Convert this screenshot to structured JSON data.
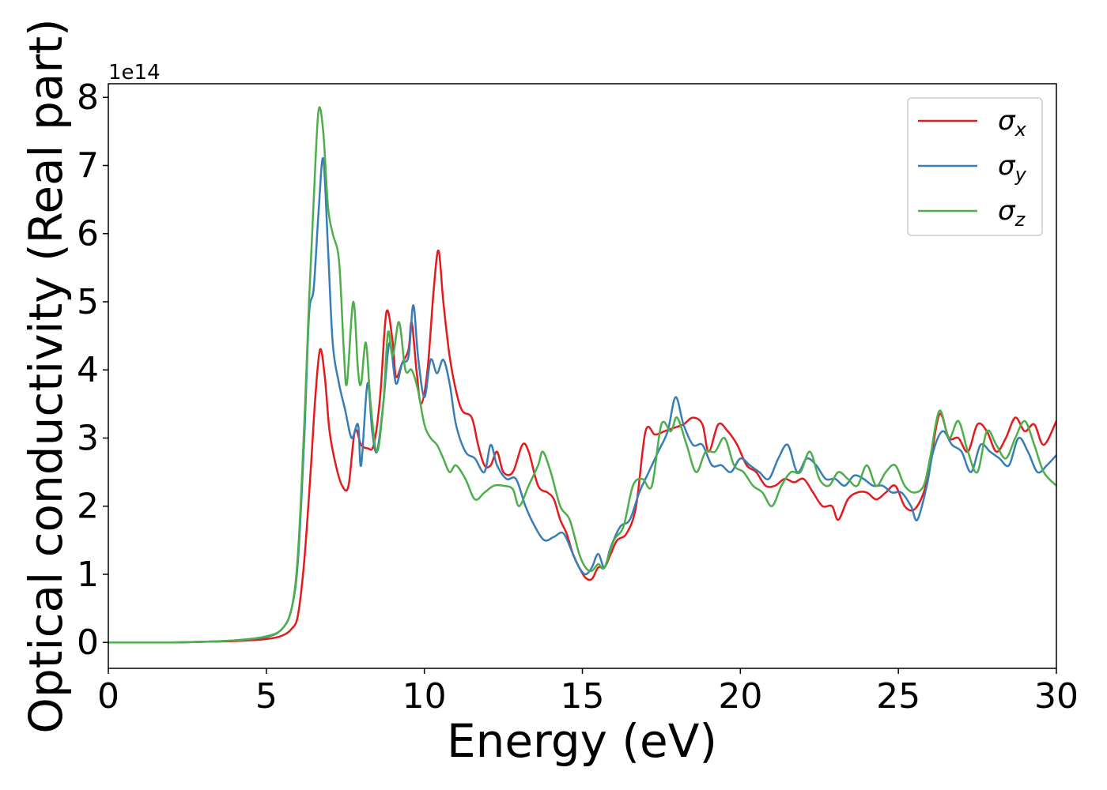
{
  "chart_data": {
    "type": "line",
    "xlabel": "Energy (eV)",
    "ylabel": "Optical conductivity (Real part)",
    "y_offset_label": "1e14",
    "xlim": [
      0,
      30
    ],
    "ylim": [
      -0.38,
      8.2
    ],
    "y_scale_factor": 100000000000000.0,
    "xticks": [
      0,
      5,
      10,
      15,
      20,
      25,
      30
    ],
    "yticks": [
      0,
      1,
      2,
      3,
      4,
      5,
      6,
      7,
      8
    ],
    "grid": false,
    "legend_position": "top-right",
    "series": [
      {
        "name": "σx",
        "symbol": "σ",
        "subscript": "x",
        "color": "#e41a1c",
        "points": [
          [
            0,
            0
          ],
          [
            2,
            0.0
          ],
          [
            3,
            0.01
          ],
          [
            4,
            0.02
          ],
          [
            5,
            0.05
          ],
          [
            5.5,
            0.1
          ],
          [
            5.8,
            0.2
          ],
          [
            6.0,
            0.4
          ],
          [
            6.2,
            1.2
          ],
          [
            6.4,
            2.5
          ],
          [
            6.55,
            3.6
          ],
          [
            6.7,
            4.3
          ],
          [
            6.85,
            3.9
          ],
          [
            7.0,
            3.1
          ],
          [
            7.2,
            2.6
          ],
          [
            7.4,
            2.3
          ],
          [
            7.6,
            2.3
          ],
          [
            7.8,
            3.1
          ],
          [
            8.0,
            2.9
          ],
          [
            8.2,
            2.85
          ],
          [
            8.4,
            2.9
          ],
          [
            8.6,
            3.6
          ],
          [
            8.8,
            4.85
          ],
          [
            9.0,
            4.4
          ],
          [
            9.1,
            3.9
          ],
          [
            9.3,
            4.1
          ],
          [
            9.5,
            4.3
          ],
          [
            9.6,
            4.7
          ],
          [
            9.75,
            4.0
          ],
          [
            9.9,
            3.5
          ],
          [
            10.1,
            4.0
          ],
          [
            10.3,
            5.2
          ],
          [
            10.45,
            5.75
          ],
          [
            10.6,
            5.0
          ],
          [
            10.8,
            4.2
          ],
          [
            11.0,
            3.7
          ],
          [
            11.2,
            3.4
          ],
          [
            11.5,
            3.3
          ],
          [
            11.7,
            2.9
          ],
          [
            11.9,
            2.6
          ],
          [
            12.1,
            2.6
          ],
          [
            12.3,
            2.8
          ],
          [
            12.5,
            2.5
          ],
          [
            12.8,
            2.5
          ],
          [
            13.1,
            2.9
          ],
          [
            13.3,
            2.8
          ],
          [
            13.6,
            2.3
          ],
          [
            13.9,
            2.2
          ],
          [
            14.1,
            2.1
          ],
          [
            14.3,
            1.8
          ],
          [
            14.5,
            1.6
          ],
          [
            14.7,
            1.3
          ],
          [
            14.9,
            1.1
          ],
          [
            15.1,
            0.95
          ],
          [
            15.3,
            0.93
          ],
          [
            15.5,
            1.1
          ],
          [
            15.7,
            1.1
          ],
          [
            15.9,
            1.3
          ],
          [
            16.1,
            1.5
          ],
          [
            16.4,
            1.6
          ],
          [
            16.7,
            2.0
          ],
          [
            17.0,
            3.1
          ],
          [
            17.3,
            3.05
          ],
          [
            17.6,
            3.1
          ],
          [
            17.9,
            3.15
          ],
          [
            18.2,
            3.2
          ],
          [
            18.5,
            3.3
          ],
          [
            18.8,
            3.2
          ],
          [
            19.0,
            2.8
          ],
          [
            19.3,
            3.2
          ],
          [
            19.6,
            3.1
          ],
          [
            19.9,
            2.9
          ],
          [
            20.2,
            2.6
          ],
          [
            20.5,
            2.5
          ],
          [
            20.8,
            2.3
          ],
          [
            21.1,
            2.3
          ],
          [
            21.4,
            2.4
          ],
          [
            21.7,
            2.35
          ],
          [
            22.0,
            2.4
          ],
          [
            22.3,
            2.2
          ],
          [
            22.6,
            2.0
          ],
          [
            22.9,
            2.0
          ],
          [
            23.1,
            1.8
          ],
          [
            23.4,
            2.1
          ],
          [
            23.7,
            2.2
          ],
          [
            24.0,
            2.2
          ],
          [
            24.3,
            2.1
          ],
          [
            24.6,
            2.2
          ],
          [
            24.9,
            2.3
          ],
          [
            25.2,
            2.0
          ],
          [
            25.5,
            1.95
          ],
          [
            25.8,
            2.2
          ],
          [
            26.0,
            2.6
          ],
          [
            26.3,
            3.35
          ],
          [
            26.6,
            3.0
          ],
          [
            26.9,
            3.0
          ],
          [
            27.2,
            2.8
          ],
          [
            27.5,
            3.2
          ],
          [
            27.8,
            3.1
          ],
          [
            28.1,
            2.8
          ],
          [
            28.4,
            3.0
          ],
          [
            28.7,
            3.3
          ],
          [
            29.0,
            3.1
          ],
          [
            29.3,
            3.2
          ],
          [
            29.6,
            2.9
          ],
          [
            30,
            3.25
          ]
        ]
      },
      {
        "name": "σy",
        "symbol": "σ",
        "subscript": "y",
        "color": "#377eb8",
        "points": [
          [
            0,
            0
          ],
          [
            2,
            0.0
          ],
          [
            3,
            0.01
          ],
          [
            4,
            0.03
          ],
          [
            5,
            0.08
          ],
          [
            5.5,
            0.2
          ],
          [
            5.8,
            0.5
          ],
          [
            6.0,
            1.2
          ],
          [
            6.2,
            3.0
          ],
          [
            6.35,
            4.8
          ],
          [
            6.5,
            5.2
          ],
          [
            6.65,
            6.3
          ],
          [
            6.8,
            7.1
          ],
          [
            6.95,
            5.8
          ],
          [
            7.1,
            4.4
          ],
          [
            7.3,
            3.8
          ],
          [
            7.5,
            3.4
          ],
          [
            7.7,
            3.0
          ],
          [
            7.9,
            3.2
          ],
          [
            8.0,
            2.6
          ],
          [
            8.2,
            3.8
          ],
          [
            8.35,
            3.1
          ],
          [
            8.5,
            2.8
          ],
          [
            8.7,
            3.5
          ],
          [
            8.9,
            4.4
          ],
          [
            9.1,
            3.8
          ],
          [
            9.3,
            4.1
          ],
          [
            9.5,
            4.2
          ],
          [
            9.65,
            4.95
          ],
          [
            9.8,
            4.2
          ],
          [
            10.0,
            3.6
          ],
          [
            10.2,
            4.15
          ],
          [
            10.4,
            3.95
          ],
          [
            10.6,
            4.15
          ],
          [
            10.8,
            3.8
          ],
          [
            11.0,
            3.2
          ],
          [
            11.3,
            2.8
          ],
          [
            11.6,
            2.7
          ],
          [
            11.9,
            2.5
          ],
          [
            12.1,
            2.9
          ],
          [
            12.3,
            2.6
          ],
          [
            12.6,
            2.4
          ],
          [
            12.9,
            2.4
          ],
          [
            13.2,
            2.0
          ],
          [
            13.5,
            1.7
          ],
          [
            13.8,
            1.5
          ],
          [
            14.1,
            1.55
          ],
          [
            14.4,
            1.6
          ],
          [
            14.7,
            1.3
          ],
          [
            14.9,
            1.1
          ],
          [
            15.1,
            1.0
          ],
          [
            15.3,
            1.1
          ],
          [
            15.5,
            1.3
          ],
          [
            15.7,
            1.1
          ],
          [
            15.9,
            1.4
          ],
          [
            16.2,
            1.7
          ],
          [
            16.5,
            1.8
          ],
          [
            16.8,
            2.2
          ],
          [
            17.1,
            2.5
          ],
          [
            17.4,
            2.8
          ],
          [
            17.7,
            3.1
          ],
          [
            17.95,
            3.6
          ],
          [
            18.2,
            3.2
          ],
          [
            18.5,
            2.9
          ],
          [
            18.8,
            2.9
          ],
          [
            19.1,
            2.6
          ],
          [
            19.4,
            2.6
          ],
          [
            19.7,
            2.5
          ],
          [
            20.0,
            2.7
          ],
          [
            20.3,
            2.6
          ],
          [
            20.6,
            2.5
          ],
          [
            20.9,
            2.4
          ],
          [
            21.2,
            2.7
          ],
          [
            21.5,
            2.9
          ],
          [
            21.8,
            2.5
          ],
          [
            22.1,
            2.7
          ],
          [
            22.4,
            2.6
          ],
          [
            22.7,
            2.4
          ],
          [
            23.0,
            2.4
          ],
          [
            23.3,
            2.3
          ],
          [
            23.6,
            2.45
          ],
          [
            23.9,
            2.4
          ],
          [
            24.2,
            2.3
          ],
          [
            24.5,
            2.3
          ],
          [
            24.8,
            2.2
          ],
          [
            25.1,
            2.2
          ],
          [
            25.4,
            2.0
          ],
          [
            25.6,
            1.8
          ],
          [
            25.9,
            2.3
          ],
          [
            26.1,
            2.8
          ],
          [
            26.4,
            3.1
          ],
          [
            26.7,
            2.9
          ],
          [
            27.0,
            2.8
          ],
          [
            27.3,
            2.5
          ],
          [
            27.6,
            2.9
          ],
          [
            27.9,
            2.8
          ],
          [
            28.2,
            2.7
          ],
          [
            28.5,
            2.6
          ],
          [
            28.8,
            3.0
          ],
          [
            29.1,
            2.8
          ],
          [
            29.4,
            2.5
          ],
          [
            29.7,
            2.6
          ],
          [
            30,
            2.75
          ]
        ]
      },
      {
        "name": "σz",
        "symbol": "σ",
        "subscript": "z",
        "color": "#4daf4a",
        "points": [
          [
            0,
            0
          ],
          [
            2,
            0.0
          ],
          [
            3,
            0.01
          ],
          [
            4,
            0.03
          ],
          [
            5,
            0.09
          ],
          [
            5.5,
            0.2
          ],
          [
            5.8,
            0.5
          ],
          [
            6.0,
            1.3
          ],
          [
            6.2,
            3.2
          ],
          [
            6.35,
            5.0
          ],
          [
            6.5,
            6.5
          ],
          [
            6.65,
            7.8
          ],
          [
            6.8,
            7.5
          ],
          [
            6.95,
            6.4
          ],
          [
            7.1,
            6.0
          ],
          [
            7.3,
            5.6
          ],
          [
            7.45,
            4.3
          ],
          [
            7.55,
            3.8
          ],
          [
            7.75,
            5.0
          ],
          [
            7.9,
            4.0
          ],
          [
            8.0,
            3.8
          ],
          [
            8.15,
            4.4
          ],
          [
            8.3,
            3.5
          ],
          [
            8.5,
            2.8
          ],
          [
            8.7,
            3.5
          ],
          [
            8.85,
            4.55
          ],
          [
            9.0,
            4.2
          ],
          [
            9.2,
            4.7
          ],
          [
            9.4,
            4.0
          ],
          [
            9.6,
            4.0
          ],
          [
            9.8,
            3.7
          ],
          [
            10.0,
            3.2
          ],
          [
            10.2,
            3.0
          ],
          [
            10.4,
            2.9
          ],
          [
            10.6,
            2.7
          ],
          [
            10.8,
            2.5
          ],
          [
            11.0,
            2.6
          ],
          [
            11.3,
            2.4
          ],
          [
            11.6,
            2.1
          ],
          [
            11.9,
            2.2
          ],
          [
            12.2,
            2.3
          ],
          [
            12.5,
            2.3
          ],
          [
            12.8,
            2.25
          ],
          [
            13.0,
            2.0
          ],
          [
            13.3,
            2.3
          ],
          [
            13.6,
            2.6
          ],
          [
            13.75,
            2.8
          ],
          [
            14.0,
            2.5
          ],
          [
            14.3,
            2.0
          ],
          [
            14.6,
            1.8
          ],
          [
            14.9,
            1.3
          ],
          [
            15.1,
            1.1
          ],
          [
            15.3,
            1.05
          ],
          [
            15.5,
            1.15
          ],
          [
            15.7,
            1.1
          ],
          [
            16.0,
            1.5
          ],
          [
            16.3,
            1.7
          ],
          [
            16.6,
            2.3
          ],
          [
            16.9,
            2.4
          ],
          [
            17.2,
            2.3
          ],
          [
            17.5,
            3.2
          ],
          [
            17.8,
            3.1
          ],
          [
            18.0,
            3.3
          ],
          [
            18.3,
            2.9
          ],
          [
            18.6,
            2.5
          ],
          [
            18.9,
            2.8
          ],
          [
            19.2,
            2.8
          ],
          [
            19.5,
            3.0
          ],
          [
            19.8,
            2.6
          ],
          [
            20.1,
            2.5
          ],
          [
            20.4,
            2.3
          ],
          [
            20.7,
            2.2
          ],
          [
            21.0,
            2.0
          ],
          [
            21.3,
            2.3
          ],
          [
            21.6,
            2.5
          ],
          [
            21.9,
            2.5
          ],
          [
            22.2,
            2.8
          ],
          [
            22.5,
            2.4
          ],
          [
            22.8,
            2.3
          ],
          [
            23.1,
            2.5
          ],
          [
            23.4,
            2.4
          ],
          [
            23.7,
            2.3
          ],
          [
            24.0,
            2.6
          ],
          [
            24.3,
            2.3
          ],
          [
            24.6,
            2.5
          ],
          [
            24.9,
            2.6
          ],
          [
            25.2,
            2.3
          ],
          [
            25.5,
            2.2
          ],
          [
            25.8,
            2.3
          ],
          [
            26.0,
            2.7
          ],
          [
            26.3,
            3.4
          ],
          [
            26.6,
            3.0
          ],
          [
            26.9,
            3.25
          ],
          [
            27.2,
            2.8
          ],
          [
            27.5,
            2.5
          ],
          [
            27.8,
            3.1
          ],
          [
            28.1,
            2.9
          ],
          [
            28.4,
            2.7
          ],
          [
            28.7,
            3.0
          ],
          [
            29.0,
            3.25
          ],
          [
            29.3,
            2.9
          ],
          [
            29.6,
            2.5
          ],
          [
            30,
            2.3
          ]
        ]
      }
    ]
  }
}
